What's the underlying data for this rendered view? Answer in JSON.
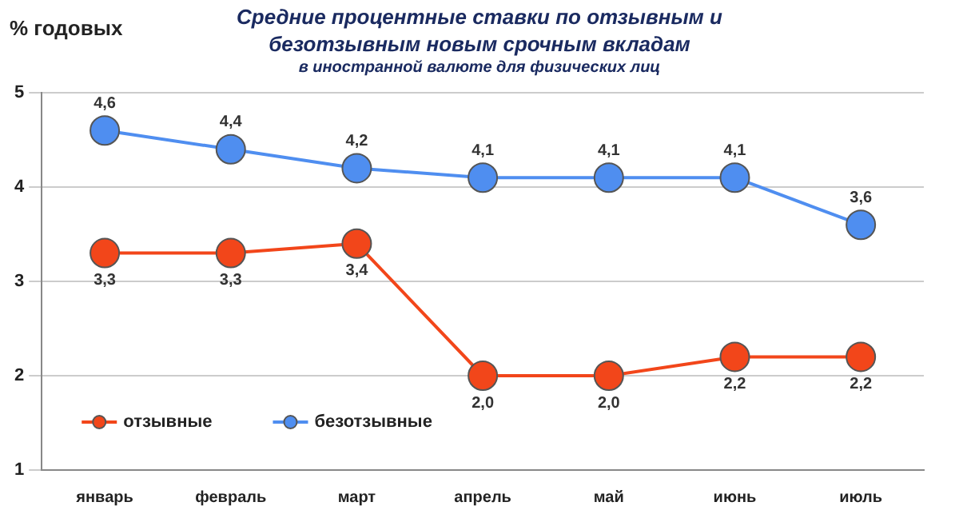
{
  "chart_data": {
    "type": "line",
    "title": "Средние процентные ставки по отзывным и безотзывным новым срочным вкладам",
    "subtitle": "в иностранной валюте для физических лиц",
    "ylabel": "% годовых",
    "categories": [
      "январь",
      "февраль",
      "март",
      "апрель",
      "май",
      "июнь",
      "июль"
    ],
    "series": [
      {
        "name": "отзывные",
        "color": "#f2461a",
        "values": [
          3.3,
          3.3,
          3.4,
          2.0,
          2.0,
          2.2,
          2.2
        ],
        "value_labels": [
          "3,3",
          "3,3",
          "3,4",
          "2,0",
          "2,0",
          "2,2",
          "2,2"
        ]
      },
      {
        "name": "безотзывные",
        "color": "#4f8ef0",
        "values": [
          4.6,
          4.4,
          4.2,
          4.1,
          4.1,
          4.1,
          3.6
        ],
        "value_labels": [
          "4,6",
          "4,4",
          "4,2",
          "4,1",
          "4,1",
          "4,1",
          "3,6"
        ]
      }
    ],
    "ylim": [
      1,
      5
    ],
    "yticks": [
      1,
      2,
      3,
      4,
      5
    ],
    "grid": "y",
    "legend": "bottom left",
    "marker": "circle",
    "line_style": "solid"
  }
}
